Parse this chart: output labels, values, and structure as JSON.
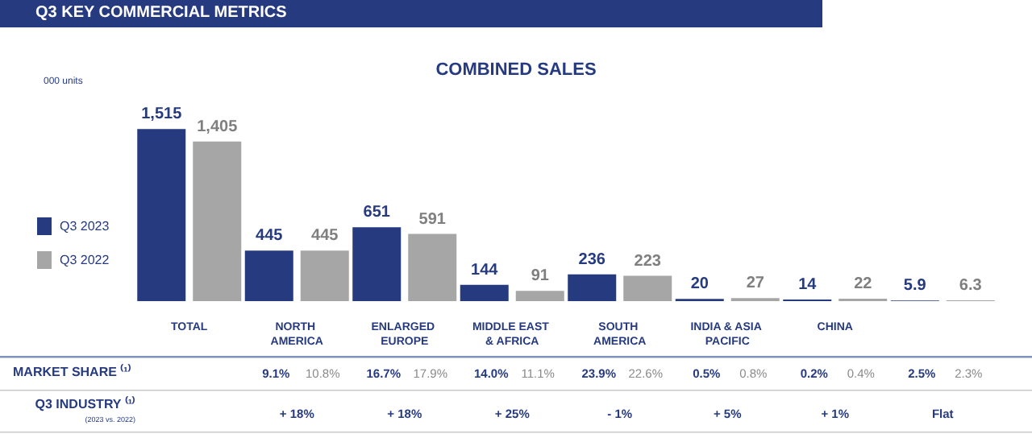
{
  "chart_data": {
    "type": "bar",
    "title": "Q3 KEY COMMERCIAL METRICS",
    "subtitle": "COMBINED SALES",
    "categories": [
      "TOTAL",
      "NORTH AMERICA",
      "ENLARGED EUROPE",
      "MIDDLE EAST & AFRICA",
      "SOUTH AMERICA",
      "INDIA & ASIA PACIFIC",
      "CHINA",
      null
    ],
    "series": [
      {
        "name": "Q3 2023",
        "color": "#263a80",
        "values": [
          1515,
          445,
          651,
          144,
          236,
          20,
          14,
          5.9
        ],
        "value_labels": [
          "1,515",
          "445",
          "651",
          "144",
          "236",
          "20",
          "14",
          "5.9"
        ]
      },
      {
        "name": "Q3 2022",
        "color": "#a6a6a6",
        "values": [
          1405,
          445,
          591,
          91,
          223,
          27,
          22,
          6.3
        ],
        "value_labels": [
          "1,405",
          "445",
          "591",
          "91",
          "223",
          "27",
          "22",
          "6.3"
        ]
      }
    ],
    "legend": "left",
    "annotations": [
      "000 units",
      "MARKET SHARE ⁽¹⁾",
      "9.1%",
      "10.8%",
      "16.7%",
      "17.9%",
      "14.0%",
      "11.1%",
      "23.9%",
      "22.6%",
      "0.5%",
      "0.8%",
      "0.2%",
      "0.4%",
      "2.5%",
      "2.3%",
      "Q3 INDUSTRY ⁽¹⁾",
      "(2023 vs. 2022)",
      "+ 18%",
      "+ 18%",
      "+ 25%",
      "- 1%",
      "+ 5%",
      "+ 1%",
      "Flat"
    ]
  }
}
